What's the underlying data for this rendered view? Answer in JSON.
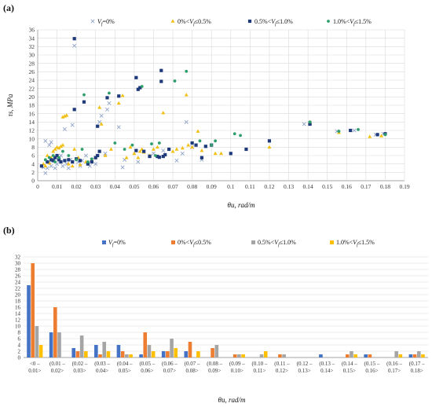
{
  "chart_data": [
    {
      "type": "scatter",
      "panel_label": "(a)",
      "xlabel": "θu, rad/m",
      "ylabel": "τs, MPa",
      "xlim": [
        0,
        0.19
      ],
      "ylim": [
        0,
        36
      ],
      "x_ticks": [
        "0",
        "0.01",
        "0.02",
        "0.03",
        "0.04",
        "0.05",
        "0.06",
        "0.07",
        "0.08",
        "0.09",
        "0.1",
        "0.11",
        "0.12",
        "0.13",
        "0.14",
        "0.15",
        "0.16",
        "0.17",
        "0.18",
        "0.19"
      ],
      "y_ticks": [
        "0",
        "2",
        "4",
        "6",
        "8",
        "10",
        "12",
        "14",
        "16",
        "18",
        "20",
        "22",
        "24",
        "26",
        "28",
        "30",
        "32",
        "34",
        "36"
      ],
      "grid": true,
      "legend_position": "top",
      "series": [
        {
          "name": "Vf=0%",
          "marker": "x",
          "color": "#8fa3c9",
          "points": [
            [
              0.003,
              3.2
            ],
            [
              0.004,
              9.5
            ],
            [
              0.004,
              1.8
            ],
            [
              0.005,
              3.0
            ],
            [
              0.006,
              4.5
            ],
            [
              0.006,
              8.5
            ],
            [
              0.007,
              3.5
            ],
            [
              0.007,
              9.2
            ],
            [
              0.008,
              5.0
            ],
            [
              0.009,
              3.0
            ],
            [
              0.01,
              4.0
            ],
            [
              0.011,
              5.5
            ],
            [
              0.012,
              6.0
            ],
            [
              0.013,
              3.5
            ],
            [
              0.014,
              12.3
            ],
            [
              0.015,
              4.0
            ],
            [
              0.016,
              3.0
            ],
            [
              0.017,
              5.0
            ],
            [
              0.018,
              13.3
            ],
            [
              0.019,
              32.2
            ],
            [
              0.021,
              4.5
            ],
            [
              0.022,
              3.5
            ],
            [
              0.023,
              4.8
            ],
            [
              0.025,
              6.0
            ],
            [
              0.027,
              3.5
            ],
            [
              0.028,
              5.0
            ],
            [
              0.03,
              4.0
            ],
            [
              0.032,
              14.0
            ],
            [
              0.033,
              15.5
            ],
            [
              0.035,
              6.5
            ],
            [
              0.036,
              17.0
            ],
            [
              0.037,
              18.5
            ],
            [
              0.042,
              12.8
            ],
            [
              0.044,
              3.2
            ],
            [
              0.045,
              5.0
            ],
            [
              0.052,
              4.5
            ],
            [
              0.058,
              6.0
            ],
            [
              0.06,
              6.5
            ],
            [
              0.065,
              7.2
            ],
            [
              0.072,
              4.8
            ],
            [
              0.075,
              6.5
            ],
            [
              0.077,
              14.0
            ],
            [
              0.08,
              8.0
            ],
            [
              0.085,
              5.0
            ],
            [
              0.138,
              13.5
            ],
            [
              0.141,
              13.8
            ],
            [
              0.155,
              11.8
            ],
            [
              0.164,
              12.0
            ],
            [
              0.175,
              11.0
            ],
            [
              0.179,
              11.2
            ]
          ]
        },
        {
          "name": "0%<Vf≤0.5%",
          "marker": "triangle",
          "color": "#f2c014",
          "points": [
            [
              0.003,
              4.0
            ],
            [
              0.004,
              3.5
            ],
            [
              0.005,
              6.0
            ],
            [
              0.006,
              4.2
            ],
            [
              0.007,
              5.5
            ],
            [
              0.008,
              7.0
            ],
            [
              0.009,
              7.5
            ],
            [
              0.01,
              8.0
            ],
            [
              0.011,
              7.8
            ],
            [
              0.012,
              8.2
            ],
            [
              0.013,
              8.5
            ],
            [
              0.013,
              15.2
            ],
            [
              0.014,
              15.4
            ],
            [
              0.015,
              15.6
            ],
            [
              0.016,
              4.0
            ],
            [
              0.018,
              3.5
            ],
            [
              0.019,
              7.5
            ],
            [
              0.021,
              5.5
            ],
            [
              0.022,
              3.8
            ],
            [
              0.025,
              4.5
            ],
            [
              0.028,
              5.0
            ],
            [
              0.03,
              5.5
            ],
            [
              0.032,
              17.5
            ],
            [
              0.033,
              13.5
            ],
            [
              0.035,
              6.0
            ],
            [
              0.038,
              7.5
            ],
            [
              0.042,
              18.5
            ],
            [
              0.044,
              20.3
            ],
            [
              0.046,
              5.5
            ],
            [
              0.048,
              8.0
            ],
            [
              0.05,
              6.5
            ],
            [
              0.052,
              5.5
            ],
            [
              0.053,
              7.0
            ],
            [
              0.054,
              7.5
            ],
            [
              0.055,
              6.8
            ],
            [
              0.058,
              6.0
            ],
            [
              0.06,
              7.5
            ],
            [
              0.062,
              8.0
            ],
            [
              0.065,
              16.2
            ],
            [
              0.07,
              7.0
            ],
            [
              0.072,
              7.5
            ],
            [
              0.075,
              7.8
            ],
            [
              0.077,
              20.5
            ],
            [
              0.078,
              8.5
            ],
            [
              0.08,
              8.0
            ],
            [
              0.083,
              11.8
            ],
            [
              0.085,
              7.2
            ],
            [
              0.092,
              6.5
            ],
            [
              0.095,
              6.5
            ],
            [
              0.12,
              8.0
            ],
            [
              0.141,
              14.0
            ],
            [
              0.156,
              11.5
            ],
            [
              0.172,
              10.5
            ],
            [
              0.178,
              10.7
            ]
          ]
        },
        {
          "name": "0.5%<Vf≤1.0%",
          "marker": "square",
          "color": "#1f3a7a",
          "points": [
            [
              0.002,
              3.5
            ],
            [
              0.005,
              4.5
            ],
            [
              0.007,
              5.0
            ],
            [
              0.008,
              4.8
            ],
            [
              0.009,
              5.5
            ],
            [
              0.01,
              6.0
            ],
            [
              0.011,
              5.0
            ],
            [
              0.012,
              4.5
            ],
            [
              0.014,
              4.8
            ],
            [
              0.016,
              5.0
            ],
            [
              0.018,
              4.5
            ],
            [
              0.019,
              17.0
            ],
            [
              0.019,
              33.9
            ],
            [
              0.02,
              5.2
            ],
            [
              0.022,
              4.8
            ],
            [
              0.024,
              18.8
            ],
            [
              0.026,
              4.0
            ],
            [
              0.028,
              4.5
            ],
            [
              0.03,
              5.5
            ],
            [
              0.031,
              13.0
            ],
            [
              0.031,
              6.0
            ],
            [
              0.032,
              7.0
            ],
            [
              0.036,
              19.8
            ],
            [
              0.042,
              20.2
            ],
            [
              0.051,
              7.2
            ],
            [
              0.051,
              24.6
            ],
            [
              0.052,
              21.8
            ],
            [
              0.053,
              22.2
            ],
            [
              0.055,
              7.0
            ],
            [
              0.058,
              5.8
            ],
            [
              0.062,
              5.8
            ],
            [
              0.063,
              5.6
            ],
            [
              0.064,
              23.7
            ],
            [
              0.064,
              26.3
            ],
            [
              0.065,
              5.8
            ],
            [
              0.066,
              6.2
            ],
            [
              0.068,
              7.5
            ],
            [
              0.08,
              9.0
            ],
            [
              0.082,
              8.5
            ],
            [
              0.085,
              5.5
            ],
            [
              0.087,
              8.2
            ],
            [
              0.09,
              8.5
            ],
            [
              0.1,
              6.5
            ],
            [
              0.108,
              7.5
            ],
            [
              0.12,
              9.5
            ],
            [
              0.141,
              13.5
            ],
            [
              0.162,
              12.0
            ],
            [
              0.176,
              11.0
            ],
            [
              0.18,
              11.2
            ]
          ]
        },
        {
          "name": "1.0%<Vf≤1.5%",
          "marker": "circle",
          "color": "#2e9e6b",
          "points": [
            [
              0.004,
              5.0
            ],
            [
              0.006,
              5.5
            ],
            [
              0.008,
              6.0
            ],
            [
              0.009,
              4.5
            ],
            [
              0.011,
              5.5
            ],
            [
              0.013,
              7.0
            ],
            [
              0.016,
              6.0
            ],
            [
              0.02,
              5.0
            ],
            [
              0.023,
              7.5
            ],
            [
              0.024,
              20.5
            ],
            [
              0.026,
              4.5
            ],
            [
              0.028,
              5.2
            ],
            [
              0.037,
              20.9
            ],
            [
              0.04,
              9.0
            ],
            [
              0.045,
              7.5
            ],
            [
              0.049,
              8.5
            ],
            [
              0.054,
              22.5
            ],
            [
              0.059,
              8.8
            ],
            [
              0.061,
              6.0
            ],
            [
              0.063,
              9.0
            ],
            [
              0.071,
              23.8
            ],
            [
              0.077,
              26.1
            ],
            [
              0.084,
              9.5
            ],
            [
              0.09,
              8.5
            ],
            [
              0.092,
              9.5
            ],
            [
              0.102,
              11.2
            ],
            [
              0.105,
              10.8
            ],
            [
              0.141,
              14.0
            ],
            [
              0.156,
              11.8
            ],
            [
              0.166,
              12.2
            ],
            [
              0.18,
              11.0
            ]
          ]
        }
      ]
    },
    {
      "type": "bar",
      "panel_label": "(b)",
      "xlabel": "θu, rad/m",
      "ylabel": "",
      "ylim": [
        0,
        32
      ],
      "y_ticks": [
        "0",
        "2",
        "4",
        "6",
        "8",
        "10",
        "12",
        "14",
        "16",
        "18",
        "20",
        "22",
        "24",
        "26",
        "28",
        "30",
        "32"
      ],
      "grid": true,
      "legend_position": "top",
      "categories": [
        {
          "line1": "<0 –",
          "line2": "0.01>"
        },
        {
          "line1": "(0.01 –",
          "line2": "0.02>"
        },
        {
          "line1": "(0.02 –",
          "line2": "0.03>"
        },
        {
          "line1": "(0.03 –",
          "line2": "0.04>"
        },
        {
          "line1": "(0.04 –",
          "line2": "0.05>"
        },
        {
          "line1": "(0.05 –",
          "line2": "0.06>"
        },
        {
          "line1": "(0.06 –",
          "line2": "0.07>"
        },
        {
          "line1": "(0.07 –",
          "line2": "0.08>"
        },
        {
          "line1": "(0.08 –",
          "line2": "0.09>"
        },
        {
          "line1": "(0.09 –",
          "line2": "0.10>"
        },
        {
          "line1": "(0.10 –",
          "line2": "0.11>"
        },
        {
          "line1": "(0.11 –",
          "line2": "0.12>"
        },
        {
          "line1": "(0.12 –",
          "line2": "0.13>"
        },
        {
          "line1": "(0.13 –",
          "line2": "0.14>"
        },
        {
          "line1": "(0.14 –",
          "line2": "0.15>"
        },
        {
          "line1": "(0.15 –",
          "line2": "0.16>"
        },
        {
          "line1": "(0.16 –",
          "line2": "0.17>"
        },
        {
          "line1": "(0.17 –",
          "line2": "0.18>"
        }
      ],
      "series": [
        {
          "name": "Vf=0%",
          "color": "#4472c4",
          "values": [
            23,
            8,
            3,
            4,
            4,
            1,
            2,
            2,
            0,
            0,
            0,
            0,
            0,
            1,
            0,
            1,
            0,
            1
          ]
        },
        {
          "name": "0%<Vf≤0.5%",
          "color": "#ed7d31",
          "values": [
            30,
            16,
            2,
            1,
            2,
            8,
            2,
            5,
            3,
            1,
            0,
            1,
            0,
            0,
            1,
            1,
            0,
            1
          ]
        },
        {
          "name": "0.5%<Vf≤1.0%",
          "color": "#a5a5a5",
          "values": [
            10,
            8,
            7,
            5,
            1,
            4,
            6,
            0,
            4,
            1,
            1,
            1,
            0,
            0,
            2,
            0,
            2,
            2
          ]
        },
        {
          "name": "1.0%<Vf≤1.5%",
          "color": "#ffc000",
          "values": [
            4,
            0,
            2,
            2,
            1,
            2,
            3,
            2,
            0,
            1,
            2,
            0,
            0,
            0,
            1,
            0,
            1,
            1
          ]
        }
      ]
    }
  ]
}
